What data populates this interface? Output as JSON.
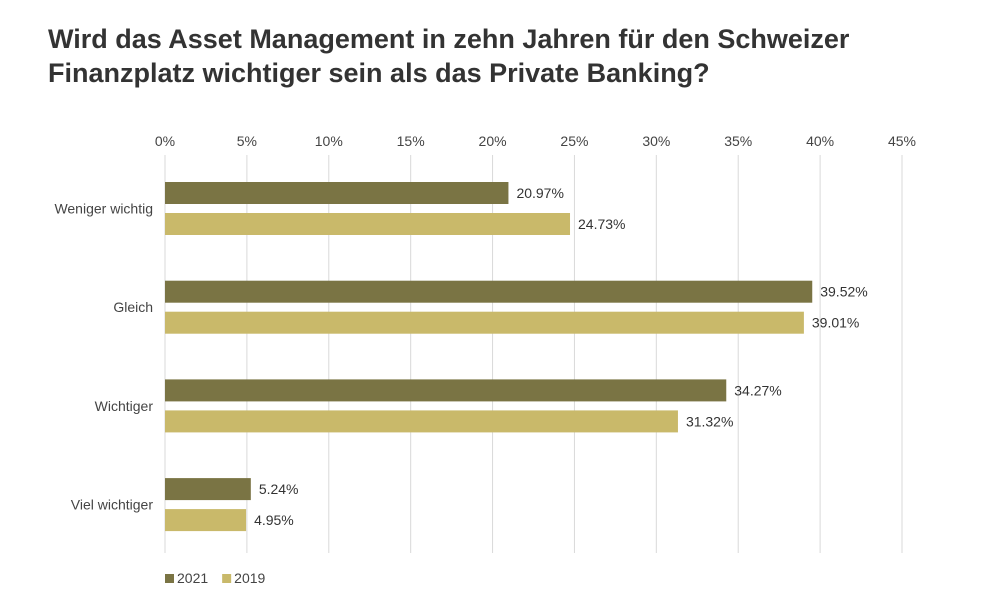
{
  "title_lines": [
    "Wird das Asset Management in zehn Jahren für den Schweizer",
    "Finanzplatz wichtiger sein als das Private Banking?"
  ],
  "chart_data": {
    "type": "bar",
    "orientation": "horizontal",
    "title": "Wird das Asset Management in zehn Jahren für den Schweizer Finanzplatz wichtiger sein als das Private Banking?",
    "categories": [
      "Weniger wichtig",
      "Gleich",
      "Wichtiger",
      "Viel wichtiger"
    ],
    "series": [
      {
        "name": "2021",
        "color": "#7a7444",
        "values": [
          20.97,
          39.52,
          34.27,
          5.24
        ],
        "labels": [
          "20.97%",
          "39.52%",
          "34.27%",
          "5.24%"
        ]
      },
      {
        "name": "2019",
        "color": "#c9b96a",
        "values": [
          24.73,
          39.01,
          31.32,
          4.95
        ],
        "labels": [
          "24.73%",
          "39.01%",
          "31.32%",
          "4.95%"
        ]
      }
    ],
    "xlim": [
      0,
      45
    ],
    "x_ticks": [
      0,
      5,
      10,
      15,
      20,
      25,
      30,
      35,
      40,
      45
    ],
    "x_tick_labels": [
      "0%",
      "5%",
      "10%",
      "15%",
      "20%",
      "25%",
      "30%",
      "35%",
      "40%",
      "45%"
    ],
    "axis_position": "top",
    "grid": true,
    "legend": "bottom-left"
  }
}
